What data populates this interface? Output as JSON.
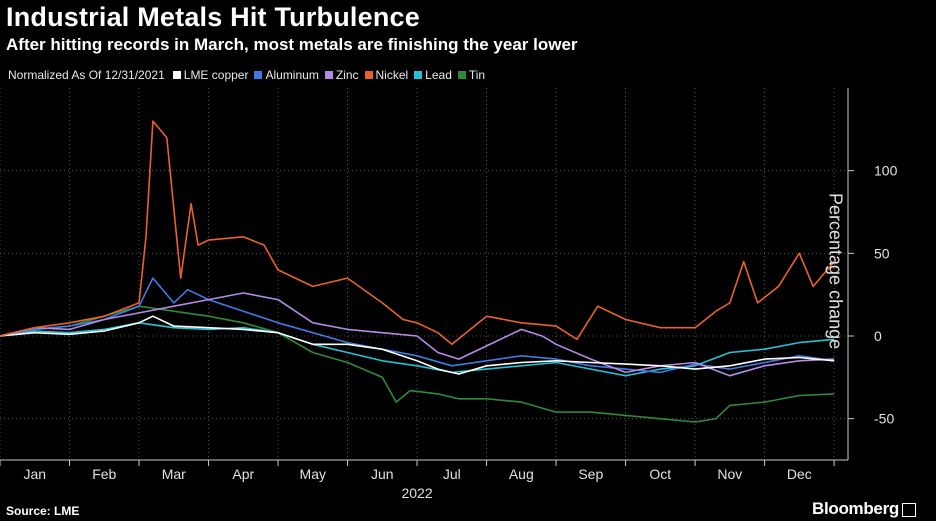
{
  "header": {
    "title": "Industrial Metals Hit Turbulence",
    "subtitle": "After hitting records in March, most metals are finishing the year lower"
  },
  "legend": {
    "note": "Normalized As Of 12/31/2021"
  },
  "footer": {
    "source": "Source: LME",
    "brand": "Bloomberg"
  },
  "chart_data": {
    "type": "line",
    "title": "Industrial Metals Hit Turbulence",
    "subtitle": "After hitting records in March, most metals are finishing the year lower",
    "ylabel": "Percentage change",
    "xlabel": "2022",
    "ylim": [
      -75,
      150
    ],
    "yticks": [
      100,
      50,
      0,
      -50
    ],
    "xlim": [
      0,
      12.2
    ],
    "xticks": [
      {
        "label": "Jan",
        "x": 0.5
      },
      {
        "label": "Feb",
        "x": 1.5
      },
      {
        "label": "Mar",
        "x": 2.5
      },
      {
        "label": "Apr",
        "x": 3.5
      },
      {
        "label": "May",
        "x": 4.5
      },
      {
        "label": "Jun",
        "x": 5.5
      },
      {
        "label": "Jul",
        "x": 6.5
      },
      {
        "label": "Aug",
        "x": 7.5
      },
      {
        "label": "Sep",
        "x": 8.5
      },
      {
        "label": "Oct",
        "x": 9.5
      },
      {
        "label": "Nov",
        "x": 10.5
      },
      {
        "label": "Dec",
        "x": 11.5
      }
    ],
    "x_units": "months since 2021-12-31",
    "grid": true,
    "legend_position": "top-left",
    "series": [
      {
        "name": "LME copper",
        "color": "#ffffff",
        "x": [
          0,
          0.5,
          1,
          1.5,
          2,
          2.2,
          2.5,
          3,
          3.5,
          4,
          4.5,
          5,
          5.5,
          6,
          6.3,
          6.6,
          7,
          7.5,
          8,
          8.5,
          9,
          9.5,
          10,
          10.5,
          11,
          11.5,
          12
        ],
        "y": [
          0,
          2,
          1,
          3,
          8,
          12,
          6,
          5,
          4,
          2,
          -5,
          -5,
          -8,
          -15,
          -20,
          -23,
          -18,
          -16,
          -15,
          -16,
          -17,
          -18,
          -20,
          -18,
          -14,
          -13,
          -15
        ]
      },
      {
        "name": "Aluminum",
        "color": "#3f7be0",
        "x": [
          0,
          0.5,
          1,
          1.5,
          2,
          2.2,
          2.5,
          2.7,
          3,
          3.5,
          4,
          4.5,
          5,
          5.5,
          6,
          6.5,
          7,
          7.5,
          8,
          8.5,
          9,
          9.5,
          10,
          10.5,
          11,
          11.5,
          12
        ],
        "y": [
          0,
          4,
          6,
          10,
          18,
          35,
          20,
          28,
          22,
          15,
          8,
          2,
          -4,
          -8,
          -12,
          -18,
          -15,
          -12,
          -14,
          -18,
          -20,
          -22,
          -17,
          -20,
          -16,
          -12,
          -15
        ]
      },
      {
        "name": "Zinc",
        "color": "#b58ae6",
        "x": [
          0,
          0.5,
          1,
          1.5,
          2,
          2.5,
          3,
          3.5,
          4,
          4.5,
          5,
          5.5,
          6,
          6.3,
          6.6,
          7,
          7.5,
          7.8,
          8,
          8.5,
          9,
          9.5,
          10,
          10.5,
          11,
          11.5,
          12
        ],
        "y": [
          0,
          5,
          4,
          10,
          14,
          18,
          22,
          26,
          22,
          8,
          4,
          2,
          0,
          -10,
          -14,
          -6,
          4,
          0,
          -5,
          -14,
          -22,
          -18,
          -16,
          -24,
          -18,
          -15,
          -14
        ]
      },
      {
        "name": "Nickel",
        "color": "#e8622c",
        "x": [
          0,
          0.5,
          1,
          1.5,
          2,
          2.1,
          2.2,
          2.4,
          2.6,
          2.75,
          2.85,
          3,
          3.5,
          3.8,
          4,
          4.5,
          5,
          5.5,
          5.8,
          6,
          6.3,
          6.5,
          7,
          7.5,
          8,
          8.3,
          8.6,
          9,
          9.5,
          10,
          10.3,
          10.5,
          10.7,
          10.9,
          11.2,
          11.5,
          11.7,
          12
        ],
        "y": [
          0,
          5,
          8,
          12,
          20,
          60,
          130,
          120,
          35,
          80,
          55,
          58,
          60,
          55,
          40,
          30,
          35,
          20,
          10,
          8,
          2,
          -5,
          12,
          8,
          6,
          -2,
          18,
          10,
          5,
          5,
          15,
          20,
          45,
          20,
          30,
          50,
          30,
          45
        ]
      },
      {
        "name": "Lead",
        "color": "#25c2d6",
        "x": [
          0,
          0.5,
          1,
          1.5,
          2,
          2.5,
          3,
          3.5,
          4,
          4.5,
          5,
          5.5,
          6,
          6.5,
          7,
          7.5,
          8,
          8.5,
          9,
          9.5,
          10,
          10.5,
          11,
          11.5,
          12
        ],
        "y": [
          0,
          3,
          2,
          4,
          8,
          5,
          4,
          5,
          2,
          -5,
          -10,
          -15,
          -18,
          -22,
          -20,
          -18,
          -16,
          -20,
          -24,
          -20,
          -18,
          -10,
          -8,
          -4,
          -2
        ]
      },
      {
        "name": "Tin",
        "color": "#2e8a39",
        "x": [
          0,
          0.5,
          1,
          1.5,
          2,
          2.5,
          3,
          3.5,
          4,
          4.5,
          5,
          5.5,
          5.7,
          5.9,
          6.3,
          6.6,
          7,
          7.5,
          8,
          8.5,
          9,
          9.5,
          10,
          10.3,
          10.5,
          11,
          11.5,
          12
        ],
        "y": [
          0,
          4,
          6,
          12,
          18,
          15,
          12,
          8,
          2,
          -10,
          -16,
          -25,
          -40,
          -33,
          -35,
          -38,
          -38,
          -40,
          -46,
          -46,
          -48,
          -50,
          -52,
          -50,
          -42,
          -40,
          -36,
          -35
        ]
      }
    ]
  }
}
